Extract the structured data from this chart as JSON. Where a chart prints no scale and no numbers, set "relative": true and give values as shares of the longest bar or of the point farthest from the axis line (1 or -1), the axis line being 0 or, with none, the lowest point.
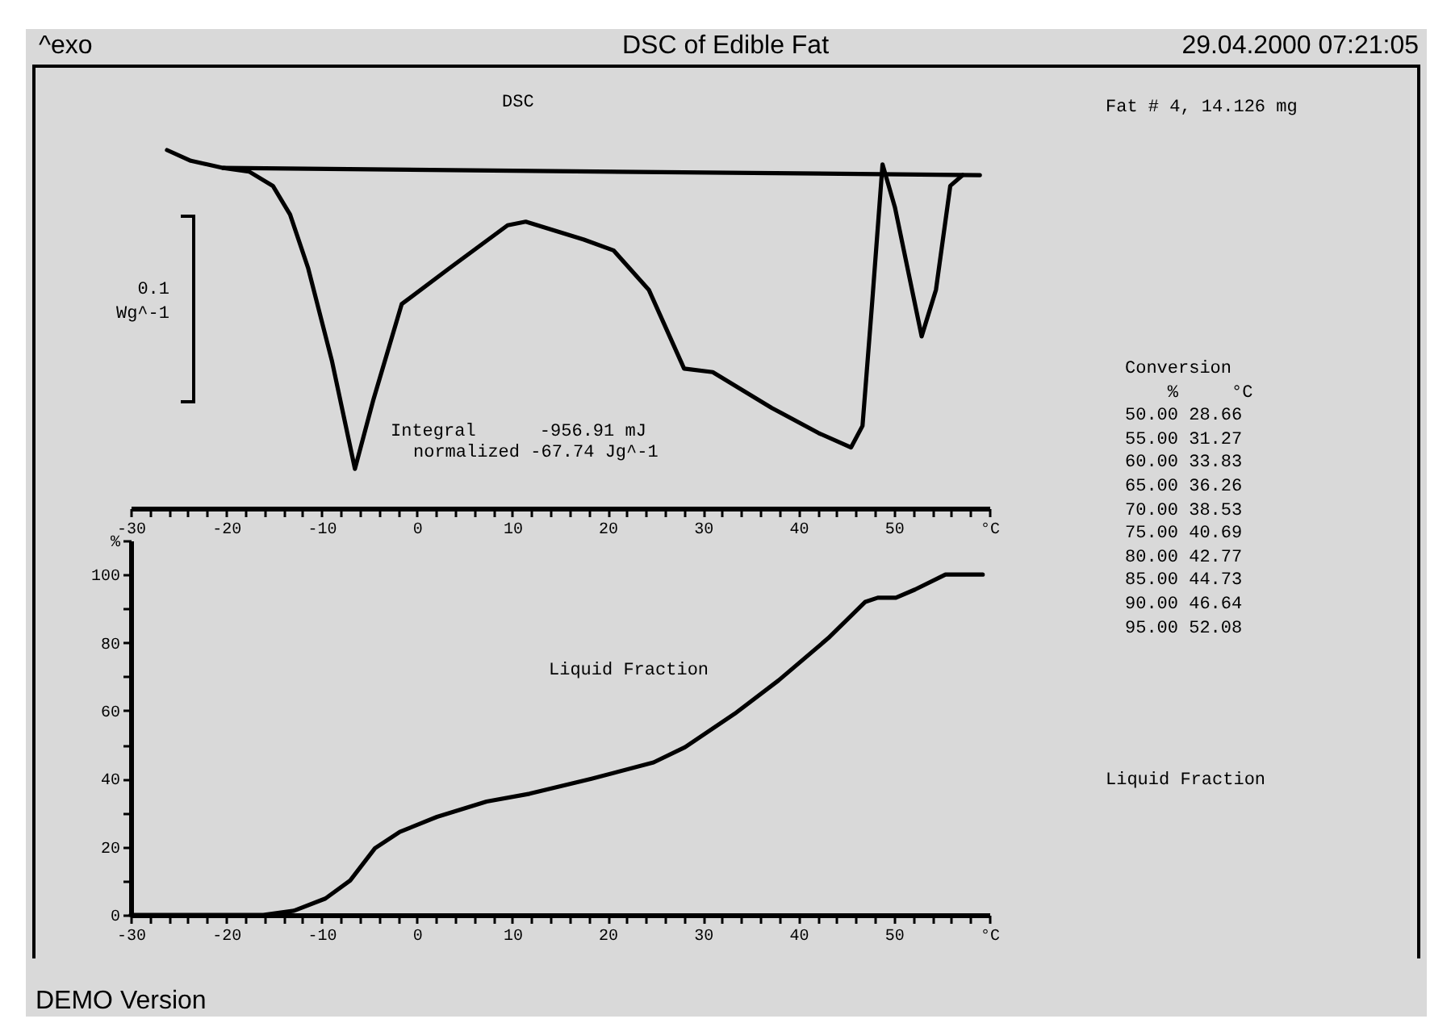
{
  "chart_data": [
    {
      "type": "line",
      "title": "DSC of Edible Fat",
      "relative": true,
      "grid": false,
      "xlim": [
        -30,
        60
      ],
      "xticks": [
        -30,
        {
          "value": -28,
          "label": null
        },
        {
          "value": -26,
          "label": null
        },
        {
          "value": -24,
          "label": null
        },
        {
          "value": -22,
          "label": null
        },
        -20,
        {
          "value": -18,
          "label": null
        },
        {
          "value": -16,
          "label": null
        },
        {
          "value": -14,
          "label": null
        },
        {
          "value": -12,
          "label": null
        },
        -10,
        {
          "value": -8,
          "label": null
        },
        {
          "value": -6,
          "label": null
        },
        {
          "value": -4,
          "label": null
        },
        {
          "value": -2,
          "label": null
        },
        0,
        {
          "value": 2,
          "label": null
        },
        {
          "value": 4,
          "label": null
        },
        {
          "value": 6,
          "label": null
        },
        {
          "value": 8,
          "label": null
        },
        10,
        {
          "value": 12,
          "label": null
        },
        {
          "value": 14,
          "label": null
        },
        {
          "value": 16,
          "label": null
        },
        {
          "value": 18,
          "label": null
        },
        20,
        {
          "value": 22,
          "label": null
        },
        {
          "value": 24,
          "label": null
        },
        {
          "value": 26,
          "label": null
        },
        {
          "value": 28,
          "label": null
        },
        30,
        {
          "value": 32,
          "label": null
        },
        {
          "value": 34,
          "label": null
        },
        {
          "value": 36,
          "label": null
        },
        {
          "value": 38,
          "label": null
        },
        40,
        {
          "value": 42,
          "label": null
        },
        {
          "value": 44,
          "label": null
        },
        {
          "value": 46,
          "label": null
        },
        {
          "value": 48,
          "label": null
        },
        50,
        {
          "value": 52,
          "label": null
        },
        {
          "value": 54,
          "label": null
        },
        {
          "value": 56,
          "label": null
        },
        {
          "value": 58,
          "label": null
        },
        {
          "value": 60,
          "label": "°C"
        }
      ],
      "series": [
        {
          "name": "DSC",
          "color": "#000000",
          "x": [
            -26.2,
            -23.7,
            -20.3,
            -17.6,
            -15.1,
            -13.3,
            -11.4,
            -8.9,
            -6.5,
            -4.6,
            -1.6,
            3.4,
            9.5,
            11.4,
            17.5,
            20.6,
            24.3,
            28.0,
            31.0,
            37.2,
            42.1,
            45.5,
            46.7,
            47.7,
            48.8,
            50.1,
            52.9,
            54.4,
            55.9,
            57.2
          ],
          "values": [
            1.0,
            0.97,
            0.95,
            0.94,
            0.9,
            0.82,
            0.67,
            0.41,
            0.11,
            0.3,
            0.57,
            0.67,
            0.79,
            0.8,
            0.75,
            0.72,
            0.61,
            0.39,
            0.38,
            0.28,
            0.21,
            0.17,
            0.23,
            0.57,
            0.96,
            0.84,
            0.48,
            0.61,
            0.9,
            0.93
          ]
        },
        {
          "color": "#000000",
          "x": [
            -20.3,
            59.0
          ],
          "values": [
            0.95,
            0.93
          ]
        }
      ],
      "annotations": [
        "^exo",
        "29.04.2000 07:21:05",
        "0.1\nWg^-1",
        "Fat # 4, 14.126 mg",
        "Integral      -956.91 mJ",
        "normalized -67.74 Jg^-1"
      ]
    },
    {
      "type": "line",
      "grid": false,
      "xlim": [
        -30,
        60
      ],
      "xticks": [
        -30,
        {
          "value": -28,
          "label": null
        },
        {
          "value": -26,
          "label": null
        },
        {
          "value": -24,
          "label": null
        },
        {
          "value": -22,
          "label": null
        },
        -20,
        {
          "value": -18,
          "label": null
        },
        {
          "value": -16,
          "label": null
        },
        {
          "value": -14,
          "label": null
        },
        {
          "value": -12,
          "label": null
        },
        -10,
        {
          "value": -8,
          "label": null
        },
        {
          "value": -6,
          "label": null
        },
        {
          "value": -4,
          "label": null
        },
        {
          "value": -2,
          "label": null
        },
        0,
        {
          "value": 2,
          "label": null
        },
        {
          "value": 4,
          "label": null
        },
        {
          "value": 6,
          "label": null
        },
        {
          "value": 8,
          "label": null
        },
        10,
        {
          "value": 12,
          "label": null
        },
        {
          "value": 14,
          "label": null
        },
        {
          "value": 16,
          "label": null
        },
        {
          "value": 18,
          "label": null
        },
        20,
        {
          "value": 22,
          "label": null
        },
        {
          "value": 24,
          "label": null
        },
        {
          "value": 26,
          "label": null
        },
        {
          "value": 28,
          "label": null
        },
        30,
        {
          "value": 32,
          "label": null
        },
        {
          "value": 34,
          "label": null
        },
        {
          "value": 36,
          "label": null
        },
        {
          "value": 38,
          "label": null
        },
        40,
        {
          "value": 42,
          "label": null
        },
        {
          "value": 44,
          "label": null
        },
        {
          "value": 46,
          "label": null
        },
        {
          "value": 48,
          "label": null
        },
        50,
        {
          "value": 52,
          "label": null
        },
        {
          "value": 54,
          "label": null
        },
        {
          "value": 56,
          "label": null
        },
        {
          "value": 58,
          "label": null
        },
        {
          "value": 60,
          "label": "°C"
        }
      ],
      "ylim": [
        0,
        110
      ],
      "yticks": [
        0,
        {
          "value": 10,
          "label": null
        },
        20,
        {
          "value": 30,
          "label": null
        },
        40,
        {
          "value": 50,
          "label": null
        },
        60,
        {
          "value": 70,
          "label": null
        },
        80,
        {
          "value": 90,
          "label": null
        },
        100,
        {
          "value": 110,
          "label": "%"
        }
      ],
      "series": [
        {
          "name": "Liquid Fraction",
          "color": "#000000",
          "x": [
            -30,
            -16.1,
            -12.9,
            -9.6,
            -7.0,
            -4.4,
            -1.8,
            2.1,
            7.3,
            11.8,
            18.3,
            24.8,
            28.1,
            33.3,
            37.9,
            43.1,
            47.0,
            48.3,
            50.2,
            52.2,
            55.4,
            59.3
          ],
          "values": [
            0,
            0,
            1.2,
            4.8,
            10.1,
            19.6,
            24.4,
            28.8,
            33.3,
            35.6,
            40.0,
            44.8,
            49.3,
            59.1,
            68.9,
            81.3,
            92.0,
            93.2,
            93.2,
            95.6,
            100,
            100
          ]
        }
      ],
      "annotations": [
        "Conversion\n    %     °C\n50.00 28.66\n55.00 31.27\n60.00 33.83\n65.00 36.26\n70.00 38.53\n75.00 40.69\n80.00 42.77\n85.00 44.73\n90.00 46.64\n95.00 52.08",
        "Liquid Fraction",
        "DEMO Version"
      ]
    }
  ]
}
